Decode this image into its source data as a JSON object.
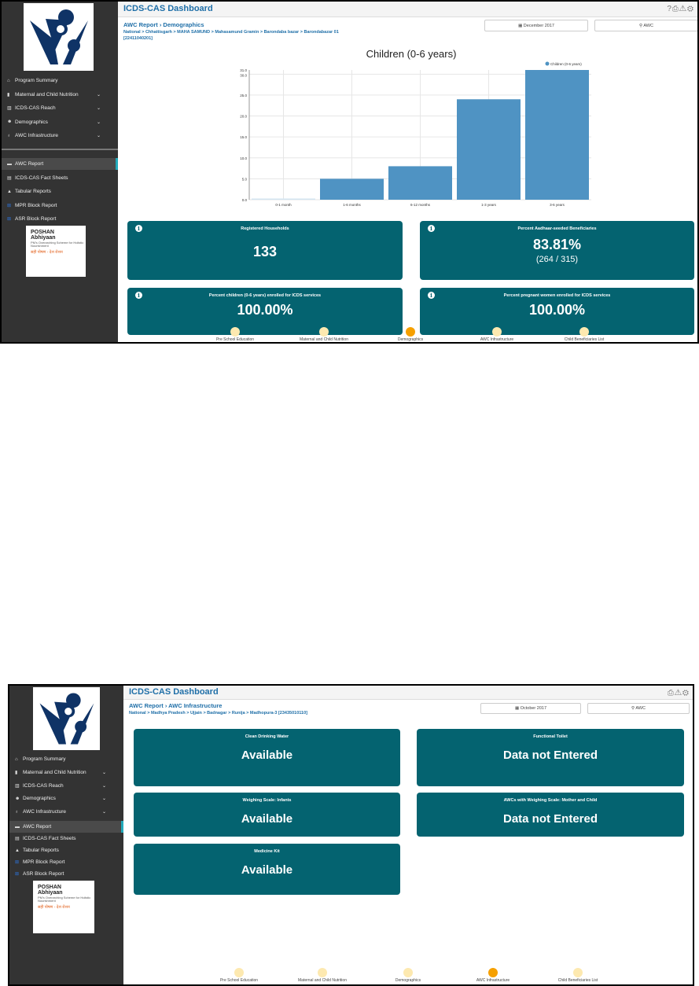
{
  "panels": [
    {
      "app_title": "ICDS-CAS Dashboard",
      "header_icons": [
        "help-icon",
        "print-icon",
        "alert-icon",
        "gear-icon"
      ],
      "breadcrumb": {
        "root": "AWC Report",
        "current": "Demographics"
      },
      "location_path": "National > Chhattisgarh > MAHA SAMUND > Mahasamund Gramin > Barondaba bazar > Barondabazar 01",
      "location_code": "[22411040201]",
      "date_filter": "December 2017",
      "level_filter": "AWC",
      "sidebar": {
        "nav": [
          {
            "label": "Program Summary",
            "icon": "home-icon",
            "expand": false
          },
          {
            "label": "Maternal and Child Nutrition",
            "icon": "bottle-icon",
            "expand": true
          },
          {
            "label": "ICDS-CAS Reach",
            "icon": "bar-chart-icon",
            "expand": true
          },
          {
            "label": "Demographics",
            "icon": "people-icon",
            "expand": true
          },
          {
            "label": "AWC Infrastructure",
            "icon": "bulb-icon",
            "expand": true
          }
        ],
        "reports": [
          {
            "label": "AWC Report",
            "active": true
          },
          {
            "label": "ICDS-CAS Fact Sheets"
          },
          {
            "label": "Tabular Reports"
          },
          {
            "label": "MPR Block Report"
          },
          {
            "label": "ASR Block Report"
          }
        ],
        "poshan": {
          "title": "POSHAN",
          "subtitle": "Abhiyaan",
          "tagline": "PM's Overarching Scheme for Holistic Nourishment",
          "hindi": "सही पोषण - देश रोशन"
        }
      },
      "cards": [
        {
          "label": "Registered Households",
          "value": "133"
        },
        {
          "label": "Percent Aadhaar-seeded Beneficiaries",
          "value": "83.81%",
          "sub": "(264 / 315)"
        },
        {
          "label": "Percent children (0-6 years) enrolled for ICDS services",
          "value": "100.00%"
        },
        {
          "label": "Percent pregnant women enrolled for ICDS services",
          "value": "100.00%"
        }
      ],
      "steps": [
        "Pre School Education",
        "Maternal and Child Nutrition",
        "Demographics",
        "AWC Infrastructure",
        "Child Beneficiaries List"
      ],
      "active_step": 2
    },
    {
      "app_title": "ICDS-CAS Dashboard",
      "header_icons": [
        "print-icon",
        "alert-icon",
        "gear-icon"
      ],
      "breadcrumb": {
        "root": "AWC Report",
        "current": "AWC Infrastructure"
      },
      "location_path": "National > Madhya Pradesh > Ujjain > Badnagar > Runija > Madhopura-3 [23435010110]",
      "date_filter": "October 2017",
      "level_filter": "AWC",
      "sidebar": {
        "nav": [
          {
            "label": "Program Summary",
            "icon": "home-icon",
            "expand": false
          },
          {
            "label": "Maternal and Child Nutrition",
            "icon": "bottle-icon",
            "expand": true
          },
          {
            "label": "ICDS-CAS Reach",
            "icon": "bar-chart-icon",
            "expand": true
          },
          {
            "label": "Demographics",
            "icon": "people-icon",
            "expand": true
          },
          {
            "label": "AWC Infrastructure",
            "icon": "bulb-icon",
            "expand": true
          }
        ],
        "reports": [
          {
            "label": "AWC Report",
            "active": true
          },
          {
            "label": "ICDS-CAS Fact Sheets"
          },
          {
            "label": "Tabular Reports"
          },
          {
            "label": "MPR Block Report"
          },
          {
            "label": "ASR Block Report"
          }
        ],
        "poshan": {
          "title": "POSHAN",
          "subtitle": "Abhiyaan",
          "tagline": "PM's Overarching Scheme for Holistic Nourishment",
          "hindi": "सही पोषण - देश रोशन"
        }
      },
      "cards": [
        {
          "label": "Clean Drinking Water",
          "value": "Available"
        },
        {
          "label": "Functional Toilet",
          "value": "Data not Entered"
        },
        {
          "label": "Weighing Scale: Infants",
          "value": "Available"
        },
        {
          "label": "AWCs with Weighing Scale: Mother and Child",
          "value": "Data not Entered"
        },
        {
          "label": "Medicine Kit",
          "value": "Available"
        }
      ],
      "steps": [
        "Pre School Education",
        "Maternal and Child Nutrition",
        "Demographics",
        "AWC Infrastructure",
        "Child Beneficiaries List"
      ],
      "active_step": 3
    }
  ],
  "chart_data": {
    "type": "bar",
    "title": "Children (0-6 years)",
    "categories": [
      "0-1 month",
      "1-6 months",
      "6-12 months",
      "1-3 years",
      "3-6 years"
    ],
    "series": [
      {
        "name": "Children (0-6 years)",
        "values": [
          0,
          5,
          8,
          24,
          31
        ]
      }
    ],
    "yticks": [
      "0.0",
      "5.0",
      "10.0",
      "15.0",
      "20.0",
      "25.0",
      "30.0",
      "31.0"
    ],
    "ylim": [
      0,
      31
    ],
    "legend": "top-right",
    "grid": true,
    "color": "#4f93c3"
  },
  "colors": {
    "card": "#046370",
    "sidebar": "#333333",
    "accent": "#1f6fa8",
    "step_active": "#f6a000",
    "step_inactive": "#fde9b0"
  }
}
